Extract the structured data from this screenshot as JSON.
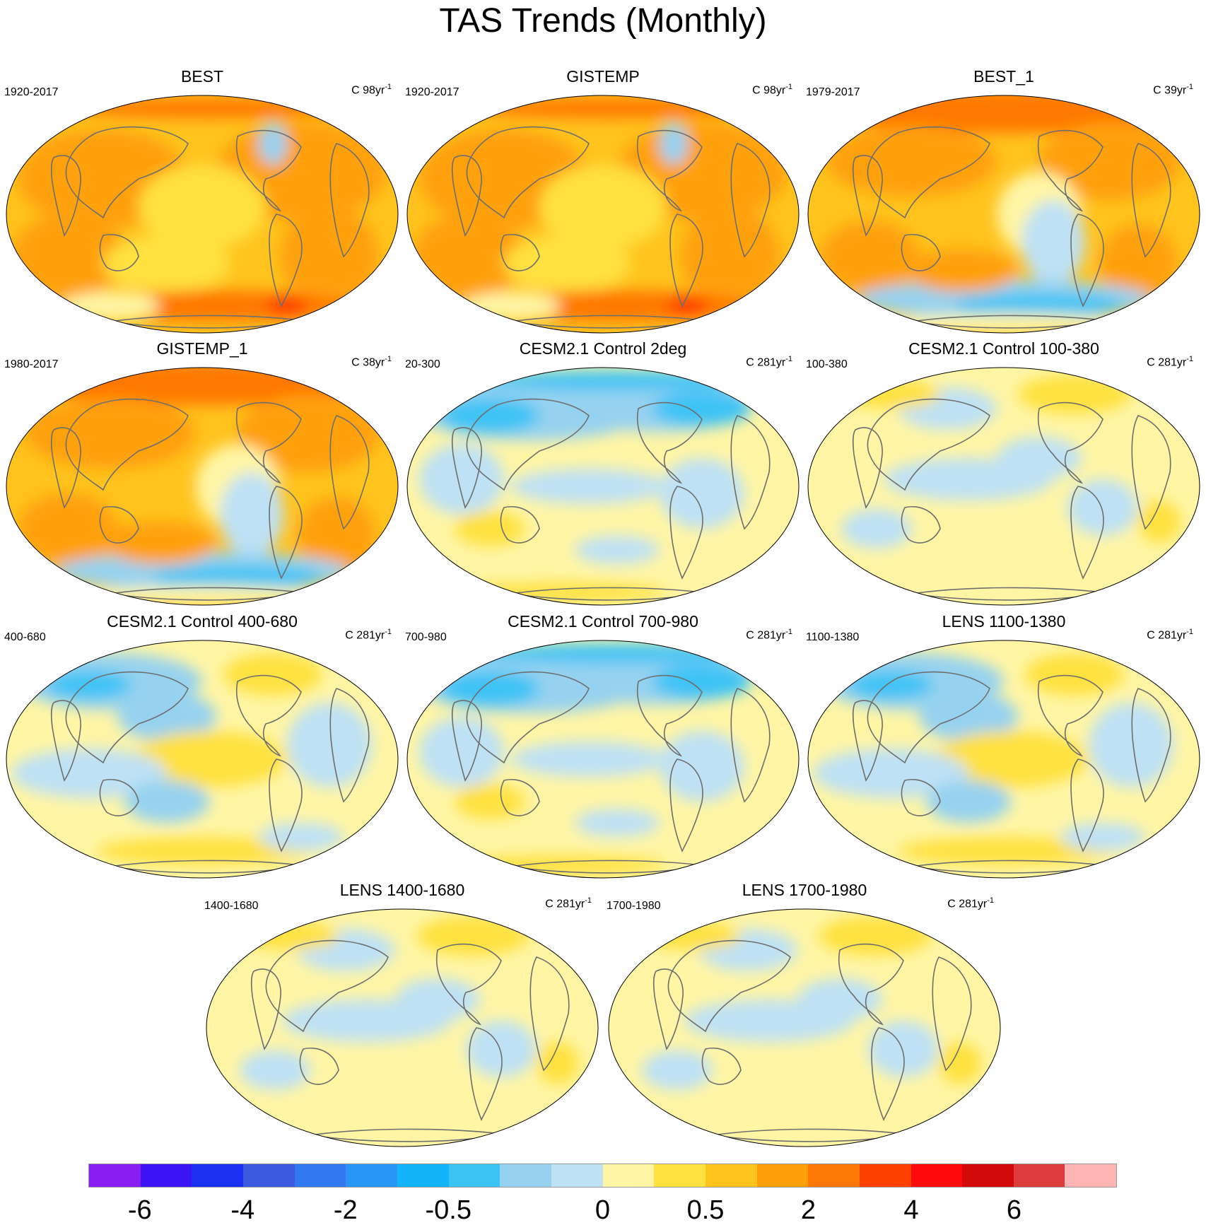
{
  "title": "TAS Trends (Monthly)",
  "panels": [
    {
      "title": "BEST",
      "period": "1920-2017",
      "units_prefix": "C 98yr",
      "units_sup": "-1",
      "pattern": "warm-strong"
    },
    {
      "title": "GISTEMP",
      "period": "1920-2017",
      "units_prefix": "C 98yr",
      "units_sup": "-1",
      "pattern": "warm-strong"
    },
    {
      "title": "BEST_1",
      "period": "1979-2017",
      "units_prefix": "C 39yr",
      "units_sup": "-1",
      "pattern": "warm-recent"
    },
    {
      "title": "GISTEMP_1",
      "period": "1980-2017",
      "units_prefix": "C 38yr",
      "units_sup": "-1",
      "pattern": "warm-recent"
    },
    {
      "title": "CESM2.1 Control 2deg",
      "period": "20-300",
      "units_prefix": "C 281yr",
      "units_sup": "-1",
      "pattern": "cool-north"
    },
    {
      "title": "CESM2.1 Control 100-380",
      "period": "100-380",
      "units_prefix": "C 281yr",
      "units_sup": "-1",
      "pattern": "neutral"
    },
    {
      "title": "CESM2.1 Control 400-680",
      "period": "400-680",
      "units_prefix": "C 281yr",
      "units_sup": "-1",
      "pattern": "mixed"
    },
    {
      "title": "CESM2.1 Control 700-980",
      "period": "700-980",
      "units_prefix": "C 281yr",
      "units_sup": "-1",
      "pattern": "cool-north"
    },
    {
      "title": "LENS 1100-1380",
      "period": "1100-1380",
      "units_prefix": "C 281yr",
      "units_sup": "-1",
      "pattern": "mixed"
    },
    {
      "title": "LENS 1400-1680",
      "period": "1400-1680",
      "units_prefix": "C 281yr",
      "units_sup": "-1",
      "pattern": "neutral"
    },
    {
      "title": "LENS 1700-1980",
      "period": "1700-1980",
      "units_prefix": "C 281yr",
      "units_sup": "-1",
      "pattern": "neutral"
    }
  ],
  "colorbar": {
    "colors": [
      "#8a1ef0",
      "#3a14f5",
      "#1a32f0",
      "#3c5ae0",
      "#3278f0",
      "#2896f5",
      "#14b4fa",
      "#3cc3f5",
      "#96d2f0",
      "#bee1f5",
      "#fff5a5",
      "#ffe141",
      "#ffc31e",
      "#ffa00a",
      "#ff7805",
      "#ff4100",
      "#ff0a0a",
      "#d20a0a",
      "#dc3c3c",
      "#ffb4b4"
    ],
    "ticks": [
      "-6",
      "-4",
      "-2",
      "-0.5",
      "0",
      "0.5",
      "2",
      "4",
      "6"
    ]
  },
  "palette": {
    "land_outline": "#6e6e6e",
    "deep_orange": "#ff7805",
    "orange": "#ffa00a",
    "amber": "#ffc31e",
    "yellow": "#ffe141",
    "pale_yellow": "#fff5a5",
    "pale_blue": "#bee1f5",
    "light_blue": "#96d2f0",
    "blue": "#3cc3f5",
    "red": "#ff4100"
  }
}
